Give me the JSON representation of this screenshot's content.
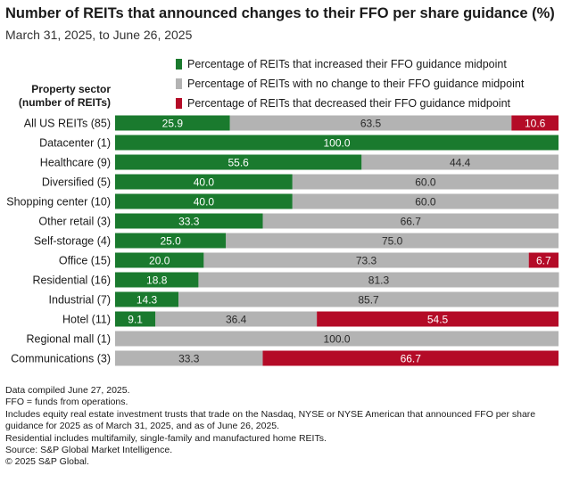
{
  "title": "Number of REITs that announced changes to their FFO per share guidance (%)",
  "subtitle": "March 31, 2025, to June 26, 2025",
  "axis_header": [
    "Property sector",
    "(number of REITs)"
  ],
  "colors": {
    "increased": "#1a7a2e",
    "no_change": "#b3b3b3",
    "decreased": "#b40b27"
  },
  "chart_data": {
    "type": "bar",
    "orientation": "horizontal",
    "stacked": true,
    "categories": [
      "All US REITs (85)",
      "Datacenter (1)",
      "Healthcare (9)",
      "Diversified (5)",
      "Shopping center (10)",
      "Other retail (3)",
      "Self-storage (4)",
      "Office (15)",
      "Residential (16)",
      "Industrial (7)",
      "Hotel (11)",
      "Regional mall (1)",
      "Communications (3)"
    ],
    "series": [
      {
        "name": "Percentage of REITs that increased their FFO guidance midpoint",
        "values": [
          25.9,
          100.0,
          55.6,
          40.0,
          40.0,
          33.3,
          25.0,
          20.0,
          18.8,
          14.3,
          9.1,
          0,
          0
        ],
        "labels": [
          "25.9",
          "100.0",
          "55.6",
          "40.0",
          "40.0",
          "33.3",
          "25.0",
          "20.0",
          "18.8",
          "14.3",
          "9.1",
          "",
          ""
        ]
      },
      {
        "name": "Percentage of REITs with no change to their FFO guidance midpoint",
        "values": [
          63.5,
          0,
          44.4,
          60.0,
          60.0,
          66.7,
          75.0,
          73.3,
          81.3,
          85.7,
          36.4,
          100.0,
          33.3
        ],
        "labels": [
          "63.5",
          "",
          "44.4",
          "60.0",
          "60.0",
          "66.7",
          "75.0",
          "73.3",
          "81.3",
          "85.7",
          "36.4",
          "100.0",
          "33.3"
        ]
      },
      {
        "name": "Percentage of REITs that decreased their FFO guidance midpoint",
        "values": [
          10.6,
          0,
          0,
          0,
          0,
          0,
          0,
          6.7,
          0,
          0,
          54.5,
          0,
          66.7
        ],
        "labels": [
          "10.6",
          "",
          "",
          "",
          "",
          "",
          "",
          "6.7",
          "",
          "",
          "54.5",
          "",
          "66.7"
        ]
      }
    ],
    "xlim": [
      0,
      100
    ],
    "legend_position": "top"
  },
  "footnotes": [
    "Data compiled June 27, 2025.",
    "FFO = funds from operations.",
    "Includes equity real estate investment trusts that trade on the Nasdaq, NYSE or NYSE American that announced FFO per share guidance for 2025 as of March 31, 2025, and as of June 26, 2025.",
    "Residential includes multifamily, single-family and manufactured home REITs.",
    "Source: S&P Global Market Intelligence.",
    "© 2025 S&P Global."
  ]
}
